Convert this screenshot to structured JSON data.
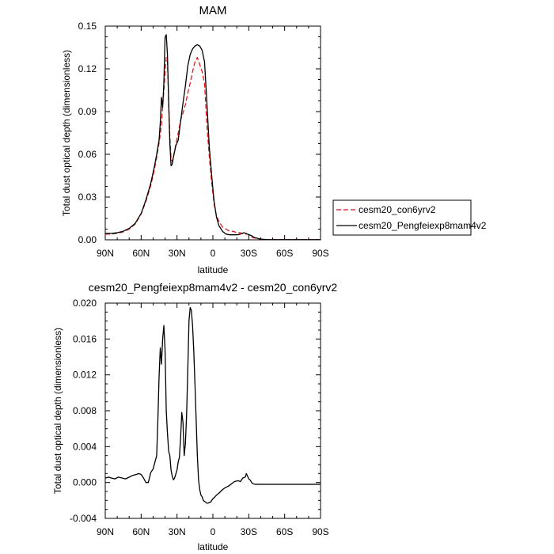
{
  "chart_data": [
    {
      "type": "line",
      "title": "MAM",
      "xlabel": "latitude",
      "ylabel": "Total dust optical depth (dimensionless)",
      "xlim": [
        90,
        -90
      ],
      "ylim": [
        0,
        0.15
      ],
      "x_ticks": [
        90,
        60,
        30,
        0,
        -30,
        -60,
        -90
      ],
      "x_tick_labels": [
        "90N",
        "60N",
        "30N",
        "0",
        "30S",
        "60S",
        "90S"
      ],
      "y_ticks": [
        0,
        0.03,
        0.06,
        0.09,
        0.12,
        0.15
      ],
      "y_tick_labels": [
        "0.00",
        "0.03",
        "0.06",
        "0.09",
        "0.12",
        "0.15"
      ],
      "grid": false,
      "legend_position": "right",
      "series": [
        {
          "name": "cesm20_con6yrv2",
          "color": "#ff0000",
          "dash": "dashed",
          "x": [
            90,
            85,
            80,
            75,
            70,
            65,
            60,
            56,
            52,
            49,
            47,
            45,
            44,
            43,
            42,
            41,
            40,
            39,
            38,
            37,
            36,
            35,
            34,
            33,
            31,
            29,
            27,
            25,
            23,
            21,
            19,
            17,
            15,
            13,
            11,
            9,
            7,
            5,
            3,
            1,
            -1,
            -3,
            -5,
            -8,
            -11,
            -14,
            -17,
            -20,
            -23,
            -26,
            -29,
            -32,
            -35,
            -40,
            -45,
            -50,
            -55,
            -60,
            -65,
            -70,
            -75,
            -80,
            -85,
            -90
          ],
          "y": [
            0.004,
            0.004,
            0.0045,
            0.0055,
            0.0075,
            0.011,
            0.018,
            0.027,
            0.038,
            0.049,
            0.058,
            0.068,
            0.074,
            0.081,
            0.094,
            0.104,
            0.118,
            0.128,
            0.125,
            0.098,
            0.073,
            0.058,
            0.055,
            0.058,
            0.067,
            0.075,
            0.084,
            0.089,
            0.095,
            0.103,
            0.11,
            0.118,
            0.125,
            0.128,
            0.123,
            0.118,
            0.11,
            0.08,
            0.058,
            0.04,
            0.025,
            0.017,
            0.013,
            0.009,
            0.0075,
            0.006,
            0.006,
            0.005,
            0.005,
            0.004,
            0.004,
            0.002,
            0.0012,
            0.0005,
            0.0002,
            0.0001,
            0.0001,
            0.0001,
            0.0001,
            0.0001,
            0.0001,
            0.0001,
            0.0001,
            0.0001
          ]
        },
        {
          "name": "cesm20_Pengfeiexp8mam4v2",
          "color": "#000000",
          "dash": "solid",
          "x": [
            90,
            85,
            80,
            75,
            70,
            65,
            60,
            56,
            52,
            49,
            47,
            45,
            44,
            43,
            42,
            41,
            40,
            39,
            38,
            37,
            36,
            35,
            34,
            33,
            31,
            29,
            27,
            25,
            23,
            21,
            19,
            17,
            15,
            13,
            11,
            9,
            7,
            5,
            3,
            1,
            -1,
            -3,
            -5,
            -8,
            -11,
            -14,
            -17,
            -20,
            -23,
            -26,
            -29,
            -32,
            -35,
            -40,
            -45,
            -50,
            -55,
            -60,
            -65,
            -70,
            -75,
            -80,
            -85,
            -90
          ],
          "y": [
            0.0045,
            0.0045,
            0.005,
            0.006,
            0.008,
            0.0115,
            0.0185,
            0.028,
            0.0395,
            0.051,
            0.06,
            0.07,
            0.082,
            0.1,
            0.093,
            0.11,
            0.142,
            0.144,
            0.13,
            0.097,
            0.068,
            0.052,
            0.053,
            0.058,
            0.066,
            0.07,
            0.083,
            0.096,
            0.108,
            0.122,
            0.13,
            0.134,
            0.136,
            0.137,
            0.136,
            0.133,
            0.125,
            0.096,
            0.065,
            0.045,
            0.027,
            0.016,
            0.01,
            0.006,
            0.004,
            0.0035,
            0.0035,
            0.0035,
            0.004,
            0.005,
            0.004,
            0.003,
            0.0015,
            0.0005,
            0.0002,
            0.0001,
            0.0001,
            0.0001,
            0.0001,
            0.0001,
            0.0001,
            0.0001,
            0.0001,
            0.0001
          ]
        }
      ]
    },
    {
      "type": "line",
      "title": "cesm20_Pengfeiexp8mam4v2 - cesm20_con6yrv2",
      "xlabel": "latitude",
      "ylabel": "Total dust optical depth (dimensionless)",
      "xlim": [
        90,
        -90
      ],
      "ylim": [
        -0.004,
        0.02
      ],
      "x_ticks": [
        90,
        60,
        30,
        0,
        -30,
        -60,
        -90
      ],
      "x_tick_labels": [
        "90N",
        "60N",
        "30N",
        "0",
        "30S",
        "60S",
        "90S"
      ],
      "y_ticks": [
        -0.004,
        0,
        0.004,
        0.008,
        0.012,
        0.016,
        0.02
      ],
      "y_tick_labels": [
        "-0.004",
        "0.000",
        "0.004",
        "0.008",
        "0.012",
        "0.016",
        "0.020"
      ],
      "grid": false,
      "series": [
        {
          "color": "#000000",
          "dash": "solid",
          "x": [
            90,
            87,
            85,
            82,
            79,
            76,
            73,
            70,
            67,
            64,
            62,
            60,
            58,
            56,
            54,
            52,
            50,
            48,
            47,
            46,
            45,
            44,
            43,
            42,
            41,
            40,
            39,
            38,
            37,
            36,
            35,
            34,
            33,
            32,
            30,
            29,
            28,
            27,
            26,
            25,
            24,
            23,
            22,
            21,
            20,
            19,
            18,
            17,
            16,
            15,
            14,
            13,
            12,
            11,
            10,
            9,
            8,
            7,
            6,
            5,
            4,
            3,
            2,
            1,
            0,
            -1,
            -3,
            -5,
            -8,
            -10,
            -13,
            -15,
            -18,
            -21,
            -23,
            -25,
            -27,
            -28,
            -29,
            -30,
            -31,
            -33,
            -35,
            -40,
            -45,
            -50,
            -55,
            -60,
            -65,
            -70,
            -75,
            -80,
            -85,
            -90
          ],
          "y": [
            0.0005,
            0.0006,
            0.0005,
            0.0004,
            0.0006,
            0.0005,
            0.0004,
            0.0006,
            0.0008,
            0.0009,
            0.001,
            0.0009,
            0.0005,
            0.0,
            0.0,
            0.0011,
            0.0015,
            0.0025,
            0.003,
            0.007,
            0.0118,
            0.015,
            0.0132,
            0.016,
            0.0175,
            0.0148,
            0.008,
            0.0055,
            0.0035,
            0.003,
            0.0014,
            0.0007,
            0.0003,
            0.0005,
            0.0014,
            0.0023,
            0.0028,
            0.005,
            0.0078,
            0.0067,
            0.003,
            0.0043,
            0.0075,
            0.0125,
            0.018,
            0.0195,
            0.0192,
            0.0175,
            0.0147,
            0.011,
            0.007,
            0.003,
            0.0003,
            -0.0008,
            -0.0014,
            -0.0016,
            -0.002,
            -0.0021,
            -0.0022,
            -0.0023,
            -0.0023,
            -0.0022,
            -0.0022,
            -0.002,
            -0.0018,
            -0.0017,
            -0.0014,
            -0.0012,
            -0.0008,
            -0.0006,
            -0.0004,
            -0.0002,
            0.0001,
            0.0002,
            0.0001,
            0.0005,
            0.0006,
            0.001,
            0.0007,
            0.0004,
            0.0003,
            -0.0001,
            -0.0002,
            -0.0002,
            -0.0002,
            -0.0002,
            -0.0002,
            -0.0002,
            -0.0002,
            -0.0002,
            -0.0002,
            -0.0002,
            -0.0002,
            -0.0002
          ]
        }
      ]
    }
  ]
}
